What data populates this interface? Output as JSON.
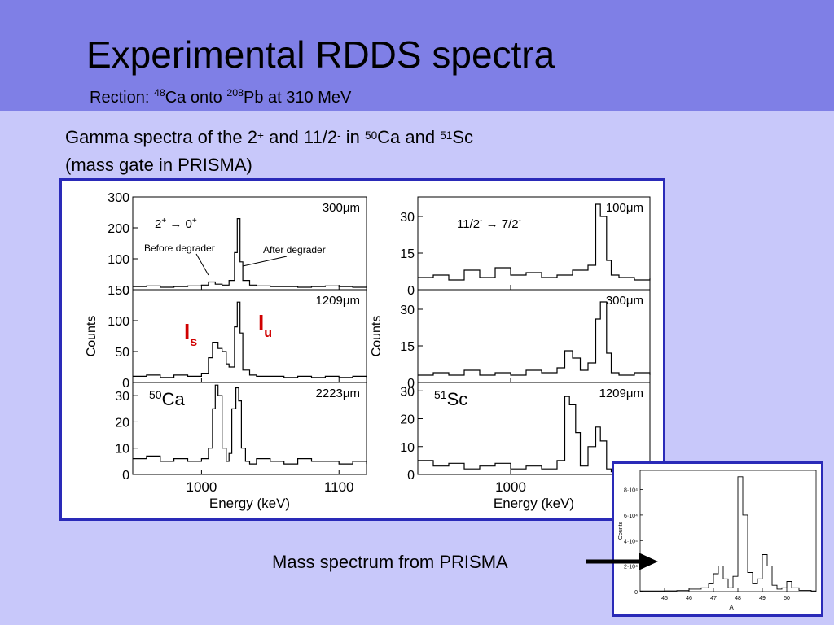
{
  "slide": {
    "title": "Experimental RDDS spectra",
    "subtitle": {
      "prefix": "Rection: ",
      "beam_mass": "48",
      "beam": "Ca onto ",
      "target_mass": "208",
      "target": "Pb at 310 MeV"
    },
    "caption": {
      "p1": "Gamma spectra of the 2",
      "s1": "+",
      "p2": " and 11/2",
      "s2": "-",
      "p3": " in ",
      "m1": "50",
      "p4": "Ca and ",
      "m2": "51",
      "p5": "Sc",
      "line2": "(mass gate in PRISMA)"
    },
    "mass_label": "Mass spectrum from PRISMA"
  },
  "chart_data": [
    {
      "type": "line",
      "title": "",
      "xlabel": "Energy (keV)",
      "ylabel": "Counts",
      "xlim": [
        950,
        1120
      ],
      "x_ticks": [
        "1000",
        "1100"
      ],
      "nucleus": {
        "mass": "50",
        "element": "Ca"
      },
      "transition": {
        "initial": "2",
        "initial_parity": "+",
        "final": "0",
        "final_parity": "+"
      },
      "annotations": {
        "before": "Before degrader",
        "after": "After degrader"
      },
      "labels": {
        "Is": "I",
        "Is_sub": "s",
        "Iu": "I",
        "Iu_sub": "u"
      },
      "panels": [
        {
          "distance": "300μm",
          "ylim": [
            0,
            300
          ],
          "yticks": [
            "300",
            "200",
            "100",
            "0"
          ],
          "x": [
            950,
            960,
            970,
            980,
            990,
            1000,
            1005,
            1010,
            1015,
            1020,
            1024,
            1026,
            1028,
            1030,
            1035,
            1040,
            1050,
            1060,
            1070,
            1080,
            1090,
            1100,
            1110,
            1120
          ],
          "y": [
            10,
            12,
            8,
            10,
            12,
            15,
            25,
            18,
            15,
            30,
            120,
            230,
            90,
            30,
            15,
            12,
            10,
            10,
            8,
            10,
            12,
            10,
            8,
            10
          ]
        },
        {
          "distance": "1209μm",
          "ylim": [
            0,
            150
          ],
          "yticks": [
            "150",
            "100",
            "50",
            "0"
          ],
          "x": [
            950,
            960,
            970,
            980,
            990,
            1000,
            1005,
            1008,
            1012,
            1015,
            1018,
            1020,
            1024,
            1026,
            1028,
            1030,
            1035,
            1040,
            1050,
            1060,
            1070,
            1080,
            1090,
            1100,
            1110,
            1120
          ],
          "y": [
            10,
            12,
            8,
            12,
            10,
            15,
            40,
            65,
            55,
            50,
            30,
            25,
            90,
            130,
            80,
            20,
            12,
            10,
            10,
            8,
            10,
            8,
            10,
            8,
            10,
            8
          ]
        },
        {
          "distance": "2223μm",
          "ylim": [
            0,
            35
          ],
          "yticks": [
            "30",
            "20",
            "10",
            "0"
          ],
          "x": [
            950,
            960,
            970,
            980,
            990,
            1000,
            1005,
            1008,
            1010,
            1012,
            1015,
            1018,
            1020,
            1022,
            1025,
            1027,
            1029,
            1032,
            1035,
            1040,
            1050,
            1060,
            1070,
            1080,
            1090,
            1100,
            1110,
            1120
          ],
          "y": [
            6,
            7,
            5,
            6,
            5,
            6,
            10,
            25,
            34,
            30,
            10,
            5,
            8,
            25,
            33,
            28,
            10,
            5,
            4,
            6,
            5,
            4,
            6,
            5,
            5,
            4,
            5,
            4
          ]
        }
      ]
    },
    {
      "type": "line",
      "title": "",
      "xlabel": "Energy (keV)",
      "ylabel": "Counts",
      "xlim": [
        940,
        1090
      ],
      "x_ticks": [
        "1000"
      ],
      "nucleus": {
        "mass": "51",
        "element": "Sc"
      },
      "transition": {
        "initial": "11/2",
        "initial_parity": "-",
        "final": "7/2",
        "final_parity": "-"
      },
      "panels": [
        {
          "distance": "100μm",
          "ylim": [
            0,
            38
          ],
          "yticks": [
            "30",
            "15",
            "0"
          ],
          "x": [
            940,
            950,
            960,
            970,
            980,
            990,
            1000,
            1010,
            1020,
            1030,
            1040,
            1050,
            1055,
            1058,
            1062,
            1065,
            1070,
            1080,
            1090
          ],
          "y": [
            5,
            6,
            4,
            8,
            5,
            9,
            6,
            7,
            5,
            6,
            8,
            10,
            35,
            30,
            12,
            6,
            5,
            4,
            5
          ]
        },
        {
          "distance": "300μm",
          "ylim": [
            0,
            38
          ],
          "yticks": [
            "30",
            "15",
            "0"
          ],
          "x": [
            940,
            950,
            960,
            970,
            980,
            990,
            1000,
            1010,
            1020,
            1030,
            1035,
            1040,
            1045,
            1050,
            1055,
            1058,
            1062,
            1065,
            1070,
            1080,
            1090
          ],
          "y": [
            3,
            4,
            3,
            5,
            3,
            4,
            3,
            5,
            4,
            6,
            13,
            10,
            5,
            8,
            26,
            33,
            12,
            4,
            3,
            4,
            3
          ]
        },
        {
          "distance": "1209μm",
          "ylim": [
            0,
            33
          ],
          "yticks": [
            "30",
            "20",
            "10",
            "0"
          ],
          "x": [
            940,
            950,
            960,
            970,
            980,
            990,
            1000,
            1010,
            1020,
            1030,
            1035,
            1038,
            1042,
            1045,
            1050,
            1055,
            1058,
            1062,
            1065,
            1070,
            1080,
            1090
          ],
          "y": [
            5,
            3,
            4,
            2,
            3,
            4,
            2,
            3,
            2,
            5,
            28,
            25,
            15,
            3,
            10,
            17,
            12,
            2,
            1,
            2,
            1,
            2
          ]
        }
      ]
    },
    {
      "type": "line",
      "title": "",
      "xlabel": "A",
      "ylabel": "Counts",
      "xlim": [
        44,
        51.2
      ],
      "ylim": [
        0,
        95000
      ],
      "x_ticks": [
        "45",
        "46",
        "47",
        "48",
        "49",
        "50"
      ],
      "y_ticks": [
        {
          "value": 0,
          "label": "0"
        },
        {
          "value": 20000,
          "label": "2·10⁴"
        },
        {
          "value": 40000,
          "label": "4·10⁴"
        },
        {
          "value": 60000,
          "label": "6·10⁴"
        },
        {
          "value": 80000,
          "label": "8·10⁴"
        }
      ],
      "x": [
        44,
        45,
        45.5,
        46,
        46.5,
        46.8,
        47,
        47.2,
        47.4,
        47.6,
        47.8,
        48,
        48.2,
        48.4,
        48.6,
        48.8,
        49,
        49.2,
        49.4,
        49.6,
        49.8,
        50,
        50.2,
        50.5,
        51,
        51.2
      ],
      "y": [
        500,
        600,
        800,
        2000,
        3000,
        6000,
        14000,
        20000,
        10000,
        3000,
        12000,
        90000,
        60000,
        15000,
        6000,
        10000,
        29000,
        20000,
        5000,
        2000,
        3000,
        8000,
        3000,
        1000,
        500,
        500
      ]
    }
  ]
}
